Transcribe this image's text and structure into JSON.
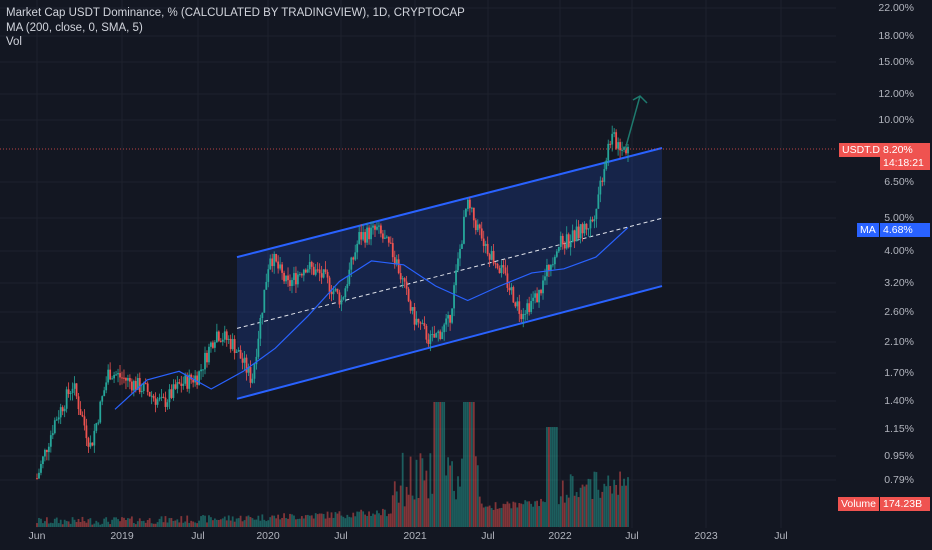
{
  "legend": {
    "line1": "Market Cap USDT Dominance, % (CALCULATED BY TRADINGVIEW), 1D, CRYPTOCAP",
    "line2": "MA (200, close, 0, SMA, 5)",
    "line3": "Vol"
  },
  "colors": {
    "background": "#131722",
    "up": "#26a69a",
    "down": "#ef5350",
    "channel": "#2962ff",
    "ma": "#2962ff",
    "arrow": "#1e7a6e"
  },
  "price_axis": [
    {
      "label": "22.00%"
    },
    {
      "label": "18.00%"
    },
    {
      "label": "15.00%"
    },
    {
      "label": "12.00%"
    },
    {
      "label": "10.00%"
    },
    {
      "label": "6.50%"
    },
    {
      "label": "5.00%"
    },
    {
      "label": "4.00%"
    },
    {
      "label": "3.20%"
    },
    {
      "label": "2.60%"
    },
    {
      "label": "2.10%"
    },
    {
      "label": "1.70%"
    },
    {
      "label": "1.40%"
    },
    {
      "label": "1.15%"
    },
    {
      "label": "0.95%"
    },
    {
      "label": "0.79%"
    }
  ],
  "time_axis": [
    {
      "label": "Jun"
    },
    {
      "label": "2019"
    },
    {
      "label": "Jul"
    },
    {
      "label": "2020"
    },
    {
      "label": "Jul"
    },
    {
      "label": "2021"
    },
    {
      "label": "Jul"
    },
    {
      "label": "2022"
    },
    {
      "label": "Jul"
    },
    {
      "label": "2023"
    },
    {
      "label": "Jul"
    }
  ],
  "tags": {
    "symbol": "USDT.D",
    "price": "8.20%",
    "countdown": "14:18:21",
    "ma_label": "MA",
    "ma_value": "4.68%",
    "volume_label": "Volume",
    "volume_value": "174.23B"
  },
  "chart_data": {
    "type": "candlestick",
    "scale": "log",
    "series": [
      {
        "name": "USDT.D",
        "approx_path_percent": [
          0.8,
          1.2,
          1.55,
          1.0,
          1.7,
          1.6,
          1.5,
          1.35,
          1.55,
          1.65,
          2.25,
          2.05,
          1.6,
          3.9,
          3.1,
          3.6,
          3.3,
          2.8,
          4.4,
          4.6,
          3.8,
          2.5,
          2.1,
          2.4,
          5.5,
          4.2,
          3.4,
          2.6,
          2.9,
          4.1,
          4.4,
          4.9,
          8.8,
          8.2
        ]
      },
      {
        "name": "MA",
        "approx_path_percent": [
          1.3,
          1.6,
          1.7,
          1.5,
          1.7,
          2.0,
          2.5,
          3.2,
          3.7,
          3.6,
          3.1,
          2.8,
          3.1,
          3.4,
          3.5,
          3.8,
          4.68
        ]
      }
    ],
    "channel": {
      "upper_start": 3.8,
      "upper_end": 8.2,
      "mid_start": 2.3,
      "mid_end": 5.0,
      "lower_start": 1.4,
      "lower_end": 3.1
    },
    "last_price": 8.2,
    "ma_value": 4.68,
    "last_volume": "174.23B"
  }
}
